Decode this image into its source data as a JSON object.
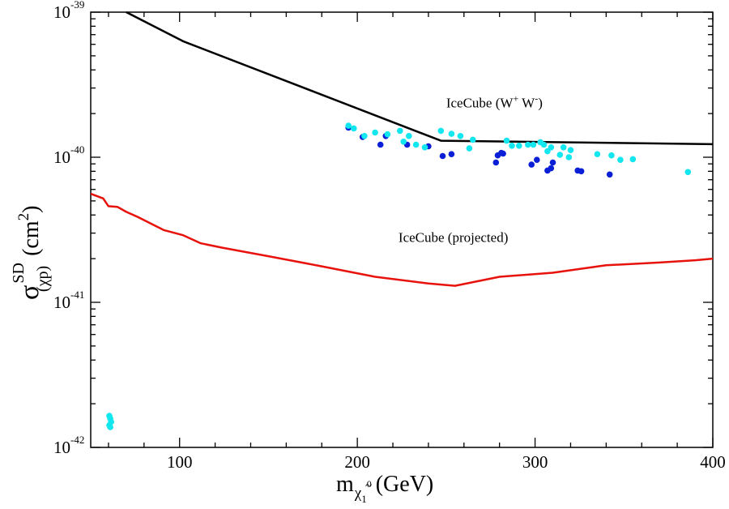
{
  "chart_data": {
    "type": "scatter+line",
    "xlabel": {
      "base": "m",
      "sub_symbol": "χ",
      "sub_tilde": "~",
      "sub_index": "1",
      "sub_sup": "0",
      "unit": "(GeV)"
    },
    "ylabel": {
      "symbol": "σ",
      "sup": "SD",
      "sub": "(χp)",
      "unit_open": "(cm",
      "unit_exp": "2",
      "unit_close": ")"
    },
    "xlim": [
      50,
      400
    ],
    "ylim": [
      1e-42,
      1e-39
    ],
    "yscale": "log",
    "x_ticks": [
      {
        "value": 100,
        "label": "100"
      },
      {
        "value": 200,
        "label": "200"
      },
      {
        "value": 300,
        "label": "300"
      },
      {
        "value": 400,
        "label": "400"
      }
    ],
    "y_ticks": [
      {
        "value": 1e-42,
        "base": "10",
        "exp": "-42"
      },
      {
        "value": 1e-41,
        "base": "10",
        "exp": "-41"
      },
      {
        "value": 1e-40,
        "base": "10",
        "exp": "-40"
      },
      {
        "value": 1e-39,
        "base": "10",
        "exp": "-39"
      }
    ],
    "grid": false,
    "annotations": [
      {
        "text_pre": "IceCube (W",
        "sup1": "+",
        "text_mid": " W",
        "sup2": "-",
        "text_post": ")",
        "x": 250,
        "y": 2.2e-40
      },
      {
        "text": "IceCube (projected)",
        "x": 254,
        "y": 2.6e-41
      }
    ],
    "colors": {
      "icecube_ww": "#000000",
      "icecube_projected": "#e8120c",
      "dark_points": "#0a1fd6",
      "light_points": "#12e6ee"
    },
    "series": [
      {
        "name": "IceCube (W+ W-)",
        "kind": "line",
        "color": "#000000",
        "x": [
          70,
          102,
          247,
          400
        ],
        "y": [
          1e-39,
          6.3e-40,
          1.3e-40,
          1.23e-40
        ]
      },
      {
        "name": "IceCube (projected)",
        "kind": "line",
        "color": "#e8120c",
        "x": [
          50,
          57,
          60,
          65,
          70,
          77,
          91,
          102,
          112,
          124,
          150,
          180,
          210,
          240,
          255,
          280,
          310,
          340,
          370,
          390,
          400
        ],
        "y": [
          5.6e-41,
          5.2e-41,
          4.6e-41,
          4.55e-41,
          4.2e-41,
          3.85e-41,
          3.15e-41,
          2.9e-41,
          2.55e-41,
          2.38e-41,
          2.08e-41,
          1.77e-41,
          1.5e-41,
          1.35e-41,
          1.3e-41,
          1.5e-41,
          1.6e-41,
          1.8e-41,
          1.88e-41,
          1.95e-41,
          2e-41
        ]
      },
      {
        "name": "dark points",
        "kind": "scatter",
        "color": "#0a1fd6",
        "x": [
          195,
          203,
          213,
          216,
          228,
          240,
          248,
          253,
          278,
          279,
          281,
          282,
          298,
          301,
          307,
          309,
          310,
          324,
          326,
          342
        ],
        "y": [
          1.6e-40,
          1.38e-40,
          1.22e-40,
          1.4e-40,
          1.22e-40,
          1.19e-40,
          1.02e-40,
          1.05e-40,
          9.2e-41,
          1.03e-40,
          1.07e-40,
          1.06e-40,
          8.9e-41,
          9.6e-41,
          8.1e-41,
          8.4e-41,
          9.2e-41,
          8.1e-41,
          8e-41,
          7.6e-41
        ]
      },
      {
        "name": "light points",
        "kind": "scatter",
        "color": "#12e6ee",
        "x": [
          60.5,
          61,
          61.5,
          60.5,
          61,
          195,
          198,
          204,
          210,
          217,
          224,
          226,
          229,
          233,
          238,
          247,
          253,
          258,
          263,
          265,
          284,
          287,
          291,
          296,
          299,
          303,
          305,
          307,
          309,
          314,
          316,
          319,
          320,
          335,
          343,
          348,
          355,
          386
        ],
        "y": [
          1.65e-42,
          1.58e-42,
          1.5e-42,
          1.42e-42,
          1.38e-42,
          1.65e-40,
          1.58e-40,
          1.4e-40,
          1.48e-40,
          1.44e-40,
          1.52e-40,
          1.28e-40,
          1.4e-40,
          1.22e-40,
          1.17e-40,
          1.52e-40,
          1.45e-40,
          1.4e-40,
          1.15e-40,
          1.32e-40,
          1.3e-40,
          1.2e-40,
          1.2e-40,
          1.22e-40,
          1.22e-40,
          1.27e-40,
          1.22e-40,
          1.1e-40,
          1.17e-40,
          1.04e-40,
          1.17e-40,
          1e-40,
          1.12e-40,
          1.05e-40,
          1.03e-40,
          9.6e-41,
          9.7e-41,
          7.9e-41
        ]
      }
    ]
  }
}
